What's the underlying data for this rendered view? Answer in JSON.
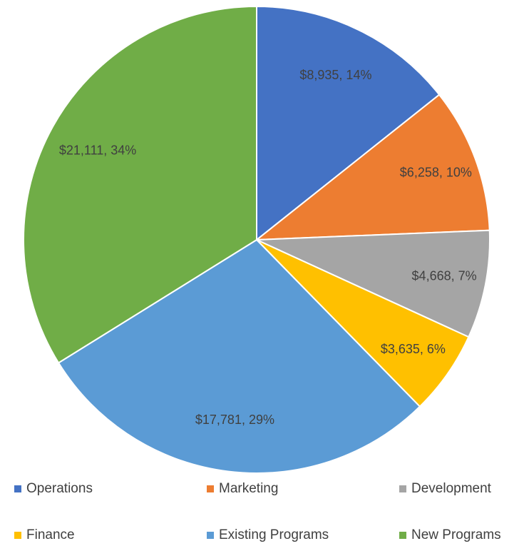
{
  "chart_data": {
    "type": "pie",
    "categories": [
      "Operations",
      "Marketing",
      "Development",
      "Finance",
      "Existing Programs",
      "New Programs"
    ],
    "values": [
      8935,
      6258,
      4668,
      3635,
      17781,
      21111
    ],
    "value_labels": [
      "$8,935, 14%",
      "$6,258, 10%",
      "$4,668, 7%",
      "$3,635, 6%",
      "$17,781, 29%",
      "$21,111, 34%"
    ],
    "colors": [
      "#4472c4",
      "#ed7d31",
      "#a5a5a5",
      "#ffc000",
      "#5b9bd5",
      "#70ad47"
    ],
    "legend": "bottom"
  }
}
